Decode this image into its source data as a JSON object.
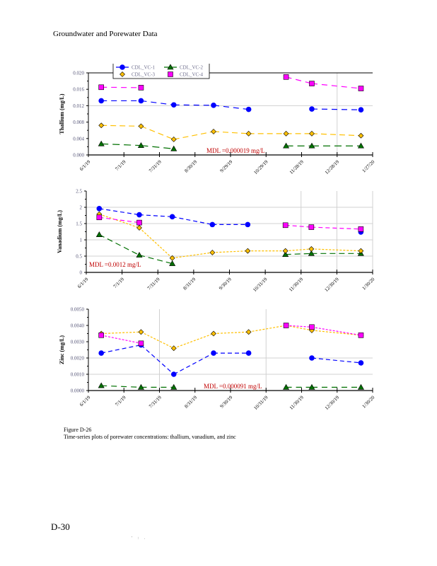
{
  "page": {
    "header": "Groundwater and Porewater Data",
    "figure_number": "Figure D-26",
    "figure_caption": "Time-series plots of porewater concentrations: thallium, vanadium, and zinc",
    "page_number": "D-30",
    "footer_mark": "' : ."
  },
  "series_styles": [
    {
      "name": "CDL_VC-1",
      "color": "#0000ff",
      "marker": "circle"
    },
    {
      "name": "CDL_VC-2",
      "color": "#007000",
      "marker": "triangle"
    },
    {
      "name": "CDL_VC-3",
      "color": "#ffc000",
      "marker": "diamond"
    },
    {
      "name": "CDL_VC-4",
      "color": "#ff00ff",
      "marker": "square"
    }
  ],
  "chart_data": [
    {
      "type": "line",
      "title": "",
      "xlabel": "",
      "ylabel": "Thallium (mg/L)",
      "ylim": [
        0,
        0.02
      ],
      "yticks": [
        "0.000",
        "0.004",
        "0.008",
        "0.012",
        "0.016",
        "0.020"
      ],
      "ytick_values": [
        0,
        0.004,
        0.008,
        0.012,
        0.016,
        0.02
      ],
      "xtick_labels": [
        "6/1/19",
        "7/1/19",
        "7/31/19",
        "8/30/19",
        "9/29/19",
        "10/29/19",
        "11/28/19",
        "12/28/19",
        "1/27/20"
      ],
      "x_days": [
        11,
        45,
        73,
        107,
        137,
        169,
        191,
        233
      ],
      "annotation": "MDL =0.000019 mg/L",
      "legend": "top-left",
      "series": [
        {
          "name": "CDL_VC-1",
          "values": [
            0.0132,
            0.0132,
            0.0122,
            0.0121,
            0.0111,
            null,
            0.0112,
            0.011
          ]
        },
        {
          "name": "CDL_VC-2",
          "values": [
            0.0027,
            0.0023,
            0.0015,
            null,
            null,
            0.0022,
            0.0022,
            0.0022
          ]
        },
        {
          "name": "CDL_VC-3",
          "values": [
            0.0072,
            0.007,
            0.0038,
            0.0057,
            0.0052,
            0.0052,
            0.0052,
            0.0047
          ]
        },
        {
          "name": "CDL_VC-4",
          "values": [
            0.0165,
            0.0164,
            null,
            null,
            null,
            0.019,
            0.0174,
            0.0162
          ]
        }
      ]
    },
    {
      "type": "line",
      "title": "",
      "xlabel": "",
      "ylabel": "Vanadium (mg/L)",
      "ylim": [
        0,
        2.5
      ],
      "yticks": [
        "0",
        "0.5",
        "1",
        "1.5",
        "2",
        "2.5"
      ],
      "ytick_values": [
        0,
        0.5,
        1,
        1.5,
        2,
        2.5
      ],
      "xtick_labels": [
        "6/1/19",
        "7/1/19",
        "7/31/19",
        "8/31/19",
        "9/30/19",
        "10/31/19",
        "11/30/19",
        "12/30/19",
        "1/30/20"
      ],
      "x_days": [
        11,
        45,
        73,
        107,
        137,
        169,
        191,
        233
      ],
      "annotation": "MDL =0.0012 mg/L",
      "series": [
        {
          "name": "CDL_VC-1",
          "values": [
            1.96,
            1.77,
            1.71,
            1.47,
            1.47,
            null,
            null,
            1.24
          ]
        },
        {
          "name": "CDL_VC-2",
          "values": [
            1.16,
            0.53,
            0.27,
            null,
            null,
            0.55,
            0.58,
            0.58
          ]
        },
        {
          "name": "CDL_VC-3",
          "values": [
            1.79,
            1.37,
            0.44,
            0.61,
            0.66,
            0.66,
            0.72,
            0.66
          ]
        },
        {
          "name": "CDL_VC-4",
          "values": [
            1.69,
            1.53,
            null,
            null,
            null,
            1.45,
            1.39,
            1.33
          ]
        }
      ]
    },
    {
      "type": "line",
      "title": "",
      "xlabel": "",
      "ylabel": "Zinc (mg/L)",
      "ylim": [
        0,
        0.005
      ],
      "yticks": [
        "0.0000",
        "0.0010",
        "0.0020",
        "0.0030",
        "0.0040",
        "0.0050"
      ],
      "ytick_values": [
        0,
        0.001,
        0.002,
        0.003,
        0.004,
        0.005
      ],
      "xtick_labels": [
        "6/1/19",
        "7/1/19",
        "7/31/19",
        "8/31/19",
        "9/30/19",
        "10/31/19",
        "11/30/19",
        "12/30/19",
        "1/30/20"
      ],
      "x_days": [
        11,
        45,
        73,
        107,
        137,
        169,
        191,
        233
      ],
      "annotation": "MDL =0.000091 mg/L",
      "series": [
        {
          "name": "CDL_VC-1",
          "values": [
            0.0023,
            0.0028,
            0.001,
            0.0023,
            0.0023,
            null,
            0.002,
            0.0017
          ]
        },
        {
          "name": "CDL_VC-2",
          "values": [
            0.0003,
            0.0002,
            0.0002,
            null,
            null,
            0.0002,
            0.0002,
            0.0002
          ]
        },
        {
          "name": "CDL_VC-3",
          "values": [
            0.0035,
            0.0036,
            0.0026,
            0.0035,
            0.0036,
            0.004,
            0.0037,
            0.0034
          ]
        },
        {
          "name": "CDL_VC-4",
          "values": [
            0.0034,
            0.0029,
            null,
            null,
            null,
            0.004,
            0.0039,
            0.0034
          ]
        }
      ]
    }
  ]
}
